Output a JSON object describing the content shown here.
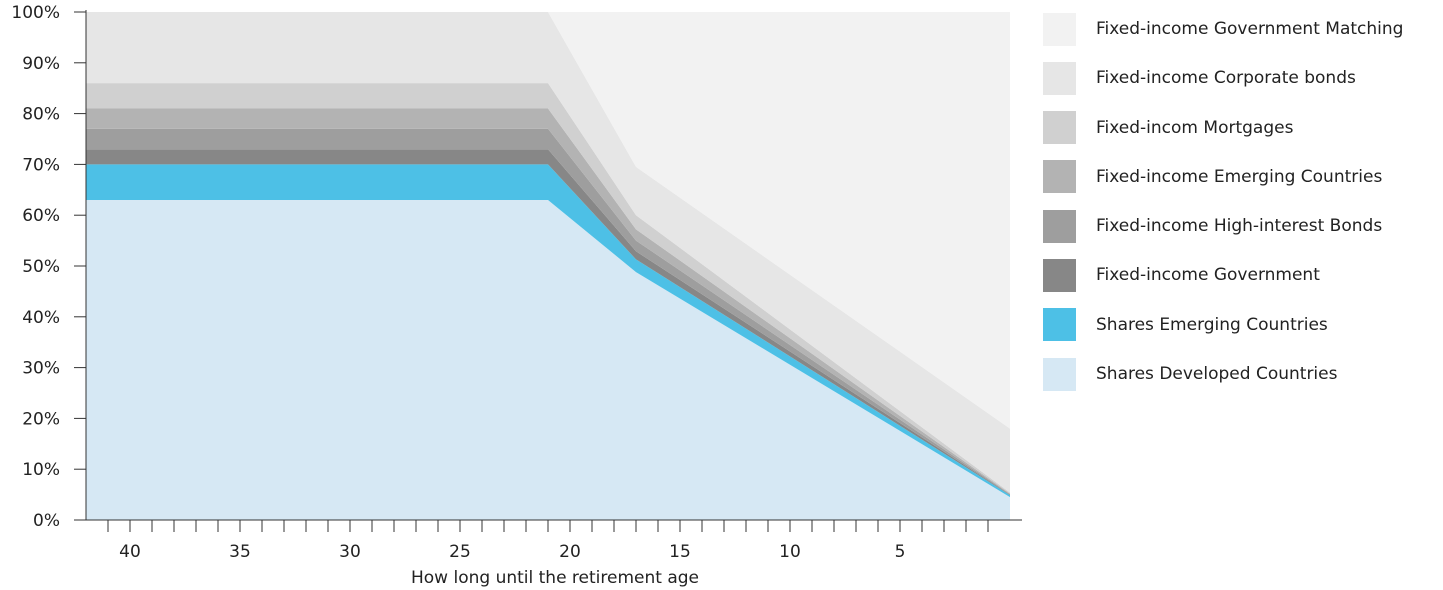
{
  "chart_data": {
    "type": "area",
    "stacked": true,
    "xlabel": "How long until the retirement age",
    "ylabel": "",
    "title": "",
    "x_ticks": [
      40,
      35,
      30,
      25,
      20,
      15,
      10,
      5
    ],
    "y_ticks": [
      "0%",
      "10%",
      "20%",
      "30%",
      "40%",
      "50%",
      "60%",
      "70%",
      "80%",
      "90%",
      "100%"
    ],
    "xlim": [
      42,
      0
    ],
    "ylim": [
      0,
      100
    ],
    "x": [
      42,
      21,
      17,
      0
    ],
    "series": [
      {
        "name": "Shares Developed Countries",
        "color": "#d6e8f4",
        "values": [
          63,
          63,
          48.8,
          4.5
        ]
      },
      {
        "name": "Shares Emerging Countries",
        "color": "#4dc0e6",
        "values": [
          7,
          7,
          2.5,
          0.4
        ]
      },
      {
        "name": "Fixed-income Government",
        "color": "#878787",
        "values": [
          3,
          3,
          1.6,
          0.1
        ]
      },
      {
        "name": "Fixed-income High-interest Bonds",
        "color": "#9e9e9e",
        "values": [
          4,
          4,
          2.1,
          0.1
        ]
      },
      {
        "name": "Fixed-income Emerging Countries",
        "color": "#b3b3b3",
        "values": [
          4,
          4,
          2.2,
          0.1
        ]
      },
      {
        "name": "Fixed-income Mortgages",
        "color": "#d0d0d0",
        "values": [
          5,
          5,
          2.8,
          0.2
        ]
      },
      {
        "name": "Fixed-income Corporate bonds",
        "color": "#e6e6e6",
        "values": [
          14,
          14,
          9.5,
          12.6
        ]
      },
      {
        "name": "Fixed-income Government Matching",
        "color": "#f2f2f2",
        "values": [
          0,
          0,
          30.5,
          82
        ]
      }
    ],
    "legend_position": "right",
    "legend": [
      {
        "label": "Fixed-income Government Matching",
        "color": "#f2f2f2"
      },
      {
        "label": "Fixed-income Corporate bonds",
        "color": "#e6e6e6"
      },
      {
        "label": "Fixed-incom Mortgages",
        "color": "#d0d0d0"
      },
      {
        "label": "Fixed-income Emerging Countries",
        "color": "#b3b3b3"
      },
      {
        "label": "Fixed-income High-interest Bonds",
        "color": "#9e9e9e"
      },
      {
        "label": "Fixed-income Government",
        "color": "#878787"
      },
      {
        "label": "Shares Emerging Countries",
        "color": "#4dc0e6"
      },
      {
        "label": "Shares Developed Countries",
        "color": "#d6e8f4"
      }
    ]
  }
}
